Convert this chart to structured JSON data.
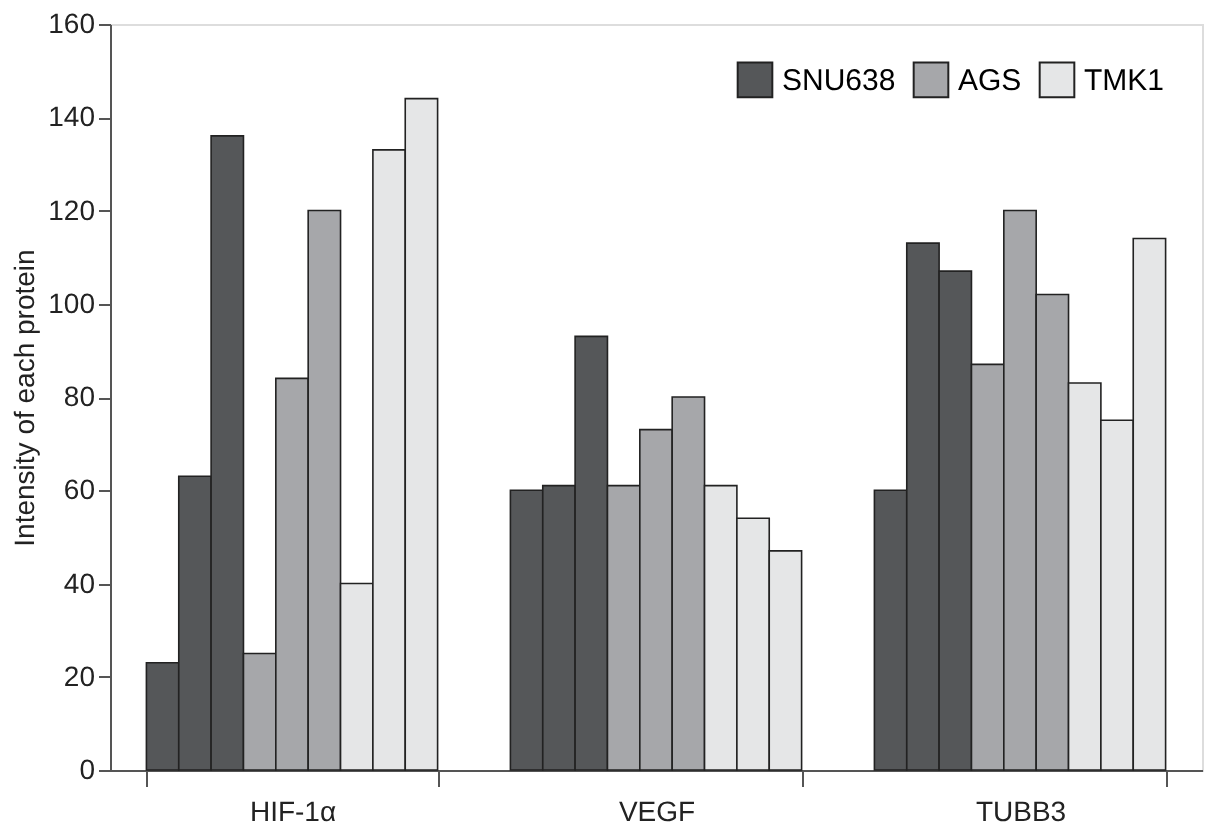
{
  "chart_data": {
    "type": "bar",
    "ylabel": "Intensity of each protein",
    "categories": [
      "HIF-1α",
      "VEGF",
      "TUBB3"
    ],
    "series": [
      {
        "name": "SNU638",
        "color": "#555759",
        "values": [
          23,
          60,
          60
        ]
      },
      {
        "color": "#555759",
        "values": [
          63,
          61,
          113
        ]
      },
      {
        "color": "#555759",
        "values": [
          136,
          93,
          107
        ]
      },
      {
        "name": "AGS",
        "color": "#a6a7aa",
        "values": [
          25,
          61,
          87
        ]
      },
      {
        "color": "#a6a7aa",
        "values": [
          84,
          73,
          120
        ]
      },
      {
        "color": "#a6a7aa",
        "values": [
          120,
          80,
          102
        ]
      },
      {
        "name": "TMK1",
        "color": "#e5e6e7",
        "values": [
          40,
          61,
          83
        ]
      },
      {
        "color": "#e5e6e7",
        "values": [
          133,
          54,
          75
        ]
      },
      {
        "color": "#e5e6e7",
        "values": [
          144,
          47,
          114
        ]
      }
    ],
    "ylim": [
      0,
      160
    ],
    "yticks": [
      0,
      20,
      40,
      60,
      80,
      100,
      120,
      140,
      160
    ],
    "grid": false,
    "legend": "top right"
  }
}
